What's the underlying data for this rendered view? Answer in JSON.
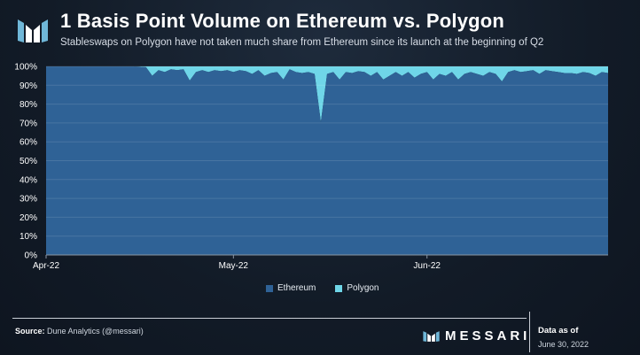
{
  "header": {
    "title": "1 Basis Point Volume on Ethereum vs. Polygon",
    "subtitle": "Stableswaps on Polygon have not taken much share from Ethereum since its launch at the beginning of Q2"
  },
  "footer": {
    "source_label": "Source:",
    "source_text": "Dune Analytics (@messari)",
    "brand": "MESSARI",
    "data_as_label": "Data as of",
    "data_as_date": "June 30, 2022"
  },
  "colors": {
    "ethereum": "#2f6296",
    "polygon": "#6fd6e8",
    "grid": "#ffffff"
  },
  "chart_data": {
    "type": "area",
    "stacked": true,
    "normalized": true,
    "title": "1 Basis Point Volume on Ethereum vs. Polygon",
    "xlabel": "",
    "ylabel": "",
    "ylim": [
      0,
      100
    ],
    "yticks": [
      "0%",
      "10%",
      "20%",
      "30%",
      "40%",
      "50%",
      "60%",
      "70%",
      "80%",
      "90%",
      "100%"
    ],
    "xticks": [
      "Apr-22",
      "May-22",
      "Jun-22"
    ],
    "legend_position": "bottom",
    "x": [
      "2022-04-01",
      "2022-04-02",
      "2022-04-03",
      "2022-04-04",
      "2022-04-05",
      "2022-04-06",
      "2022-04-07",
      "2022-04-08",
      "2022-04-09",
      "2022-04-10",
      "2022-04-11",
      "2022-04-12",
      "2022-04-13",
      "2022-04-14",
      "2022-04-15",
      "2022-04-16",
      "2022-04-17",
      "2022-04-18",
      "2022-04-19",
      "2022-04-20",
      "2022-04-21",
      "2022-04-22",
      "2022-04-23",
      "2022-04-24",
      "2022-04-25",
      "2022-04-26",
      "2022-04-27",
      "2022-04-28",
      "2022-04-29",
      "2022-04-30",
      "2022-05-01",
      "2022-05-02",
      "2022-05-03",
      "2022-05-04",
      "2022-05-05",
      "2022-05-06",
      "2022-05-07",
      "2022-05-08",
      "2022-05-09",
      "2022-05-10",
      "2022-05-11",
      "2022-05-12",
      "2022-05-13",
      "2022-05-14",
      "2022-05-15",
      "2022-05-16",
      "2022-05-17",
      "2022-05-18",
      "2022-05-19",
      "2022-05-20",
      "2022-05-21",
      "2022-05-22",
      "2022-05-23",
      "2022-05-24",
      "2022-05-25",
      "2022-05-26",
      "2022-05-27",
      "2022-05-28",
      "2022-05-29",
      "2022-05-30",
      "2022-05-31",
      "2022-06-01",
      "2022-06-02",
      "2022-06-03",
      "2022-06-04",
      "2022-06-05",
      "2022-06-06",
      "2022-06-07",
      "2022-06-08",
      "2022-06-09",
      "2022-06-10",
      "2022-06-11",
      "2022-06-12",
      "2022-06-13",
      "2022-06-14",
      "2022-06-15",
      "2022-06-16",
      "2022-06-17",
      "2022-06-18",
      "2022-06-19",
      "2022-06-20",
      "2022-06-21",
      "2022-06-22",
      "2022-06-23",
      "2022-06-24",
      "2022-06-25",
      "2022-06-26",
      "2022-06-27",
      "2022-06-28",
      "2022-06-29",
      "2022-06-30"
    ],
    "series": [
      {
        "name": "Ethereum",
        "values": [
          100,
          100,
          100,
          100,
          100,
          100,
          100,
          100,
          100,
          100,
          100,
          100,
          100,
          100,
          100,
          99.8,
          99.6,
          95,
          98,
          97,
          98.5,
          98,
          98.5,
          92.5,
          97,
          98,
          97,
          98,
          97.5,
          98,
          97,
          98,
          97.5,
          96,
          98,
          95,
          96.5,
          97,
          93,
          98.5,
          97,
          96.5,
          97,
          96,
          70.5,
          96,
          97,
          93,
          97,
          96.5,
          97.5,
          97,
          95,
          97,
          93,
          95,
          97,
          95,
          97,
          94,
          96,
          97,
          93,
          96,
          95,
          97,
          93,
          96,
          97,
          96,
          95,
          97,
          96,
          92,
          97,
          98,
          97,
          97.5,
          98,
          96,
          98,
          97.5,
          97,
          96.5,
          96.5,
          96,
          97,
          96.5,
          95,
          97,
          96.5
        ]
      },
      {
        "name": "Polygon",
        "values": [
          0,
          0,
          0,
          0,
          0,
          0,
          0,
          0,
          0,
          0,
          0,
          0,
          0,
          0,
          0,
          0.2,
          0.4,
          5,
          2,
          3,
          1.5,
          2,
          1.5,
          7.5,
          3,
          2,
          3,
          2,
          2.5,
          2,
          3,
          2,
          2.5,
          4,
          2,
          5,
          3.5,
          3,
          7,
          1.5,
          3,
          3.5,
          3,
          4,
          29.5,
          4,
          3,
          7,
          3,
          3.5,
          2.5,
          3,
          5,
          3,
          7,
          5,
          3,
          5,
          3,
          6,
          4,
          3,
          7,
          4,
          5,
          3,
          7,
          4,
          3,
          4,
          5,
          3,
          4,
          8,
          3,
          2,
          3,
          2.5,
          2,
          4,
          2,
          2.5,
          3,
          3.5,
          3.5,
          4,
          3,
          3.5,
          5,
          3,
          3.5
        ]
      }
    ]
  }
}
